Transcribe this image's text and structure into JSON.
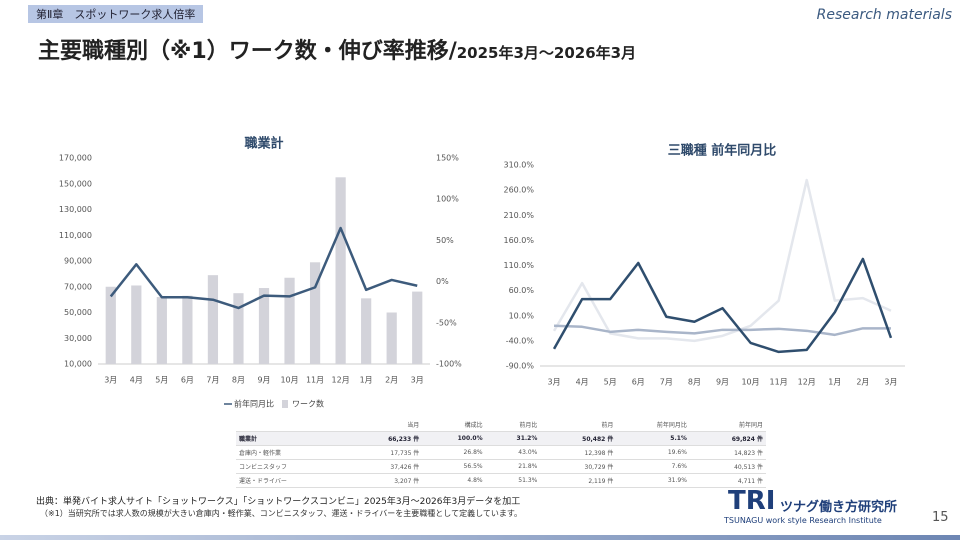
{
  "header": {
    "chapter": "第Ⅱ章　スポットワーク求人倍率",
    "corner": "Research materials",
    "title": "主要職種別（※1）ワーク数・伸び率推移/",
    "subtitle": "2025年3月～2026年3月"
  },
  "chart_data": [
    {
      "type": "bar",
      "title": "職業計",
      "categories": [
        "3月",
        "4月",
        "5月",
        "6月",
        "7月",
        "8月",
        "9月",
        "10月",
        "11月",
        "12月",
        "1月",
        "2月",
        "3月"
      ],
      "series": [
        {
          "name": "ワーク数",
          "type": "bar",
          "color": "#d3d3da",
          "values": [
            70000,
            71000,
            62000,
            63000,
            79000,
            65000,
            69000,
            77000,
            89000,
            155000,
            61000,
            50000,
            66233
          ]
        },
        {
          "name": "前年同月比",
          "type": "line",
          "axis": "y2",
          "color": "#3d5b7c",
          "values": [
            -18,
            21,
            -19,
            -19,
            -22,
            -32,
            -17,
            -18,
            -7,
            65,
            -10,
            2,
            -5
          ]
        }
      ],
      "ylim": [
        10000,
        170000
      ],
      "yticks": [
        {
          "value": 10000,
          "label": "10,000"
        },
        {
          "value": 30000,
          "label": "30,000"
        },
        {
          "value": 50000,
          "label": "50,000"
        },
        {
          "value": 70000,
          "label": "70,000"
        },
        {
          "value": 90000,
          "label": "90,000"
        },
        {
          "value": 110000,
          "label": "110,000"
        },
        {
          "value": 130000,
          "label": "130,000"
        },
        {
          "value": 150000,
          "label": "150,000"
        },
        {
          "value": 170000,
          "label": "170,000"
        }
      ],
      "y2lim": [
        -100,
        150
      ],
      "y2ticks": [
        {
          "value": -100,
          "label": "-100%"
        },
        {
          "value": -50,
          "label": "-50%"
        },
        {
          "value": 0,
          "label": "0%"
        },
        {
          "value": 50,
          "label": "50%"
        },
        {
          "value": 100,
          "label": "100%"
        },
        {
          "value": 150,
          "label": "150%"
        }
      ],
      "grid": false,
      "legend": "bottom"
    },
    {
      "type": "line",
      "title": "三職種 前年同月比",
      "categories": [
        "3月",
        "4月",
        "5月",
        "6月",
        "7月",
        "8月",
        "9月",
        "10月",
        "11月",
        "12月",
        "1月",
        "2月",
        "3月"
      ],
      "series": [
        {
          "color": "#e4e7ed",
          "values": [
            -20,
            75,
            -25,
            -35,
            -35,
            -40,
            -30,
            -10,
            40,
            280,
            40,
            45,
            20
          ]
        },
        {
          "color": "#a9b5c9",
          "values": [
            -10,
            -12,
            -22,
            -18,
            -22,
            -25,
            -18,
            -18,
            -16,
            -20,
            -28,
            -15,
            -15
          ]
        },
        {
          "color": "#2f4e6e",
          "values": [
            -56,
            43,
            43,
            115,
            8,
            -2,
            25,
            -44,
            -62,
            -58,
            17,
            123,
            -34
          ]
        }
      ],
      "ylim": [
        -90,
        310
      ],
      "yticks": [
        {
          "value": -90,
          "label": "-90.0%"
        },
        {
          "value": -40,
          "label": "-40.0%"
        },
        {
          "value": 10,
          "label": "10.0%"
        },
        {
          "value": 60,
          "label": "60.0%"
        },
        {
          "value": 110,
          "label": "110.0%"
        },
        {
          "value": 160,
          "label": "160.0%"
        },
        {
          "value": 210,
          "label": "210.0%"
        },
        {
          "value": 260,
          "label": "260.0%"
        },
        {
          "value": 310,
          "label": "310.0%"
        }
      ],
      "grid": false
    }
  ],
  "table": {
    "headers": [
      "当月",
      "構成比",
      "前月比",
      "前月",
      "前年同月比",
      "前年同月"
    ],
    "rows": [
      [
        "職業計",
        "66,233 件",
        "100.0%",
        "31.2%",
        "50,482 件",
        "5.1%",
        "69,824 件"
      ],
      [
        "倉庫内・軽作業",
        "17,735 件",
        "26.8%",
        "43.0%",
        "12,398 件",
        "19.6%",
        "14,823 件"
      ],
      [
        "コンビニスタッフ",
        "37,426 件",
        "56.5%",
        "21.8%",
        "30,729 件",
        "7.6%",
        "40,513 件"
      ],
      [
        "運送・ドライバー",
        "3,207 件",
        "4.8%",
        "51.3%",
        "2,119 件",
        "31.9%",
        "4,711 件"
      ]
    ]
  },
  "footer": {
    "source": "出典：単発バイト求人サイト「ショットワークス」「ショットワークスコンビニ」2025年3月～2026年3月データを加工",
    "note": "（※1）当研究所では求人数の規模が大きい倉庫内・軽作業、コンビニスタッフ、運送・ドライバーを主要職種として定義しています。",
    "logo": "TRI",
    "org": "ツナグ働き方研究所",
    "org_en": "TSUNAGU work style Research Institute",
    "page": "15"
  }
}
